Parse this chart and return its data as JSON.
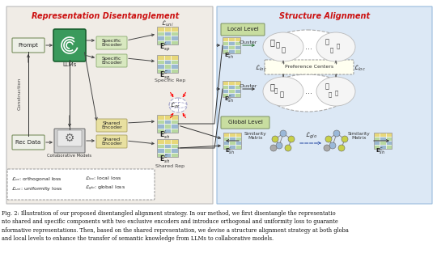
{
  "fig_caption": "Fig. 2: Illustration of our proposed disentangled alignment strategy. In our method, we first disentangle the representatio\nnto shared and specific components with two exclusive encoders and introduce orthogonal and uniformity loss to guarante\nnformative representations. Then, based on the shared representation, we devise a structure alignment strategy at both globa\nand local levels to enhance the transfer of semantic knowledge from LLMs to collaborative models.",
  "left_title": "Representation Disentanglement",
  "right_title": "Structure Alignment",
  "left_bg": "#f0ece6",
  "right_bg": "#dce8f5",
  "title_red": "#cc1111",
  "prompt_fc": "#eef0e8",
  "prompt_ec": "#7a9060",
  "recdata_fc": "#eef0e8",
  "recdata_ec": "#7a9060",
  "llm_green": "#3a9a5c",
  "spec_enc_fc": "#d8e8c0",
  "spec_enc_ec": "#8aaa70",
  "shared_enc_fc": "#e8e0a0",
  "shared_enc_ec": "#aaa060",
  "local_level_fc": "#c8dda0",
  "local_level_ec": "#7a9060",
  "global_level_fc": "#c8dda0",
  "global_level_ec": "#7a9060",
  "mat_yellow": "#e8d87a",
  "mat_blue": "#9ab8d0",
  "mat_green": "#b8d8a0",
  "caption_fontsize": 4.8
}
